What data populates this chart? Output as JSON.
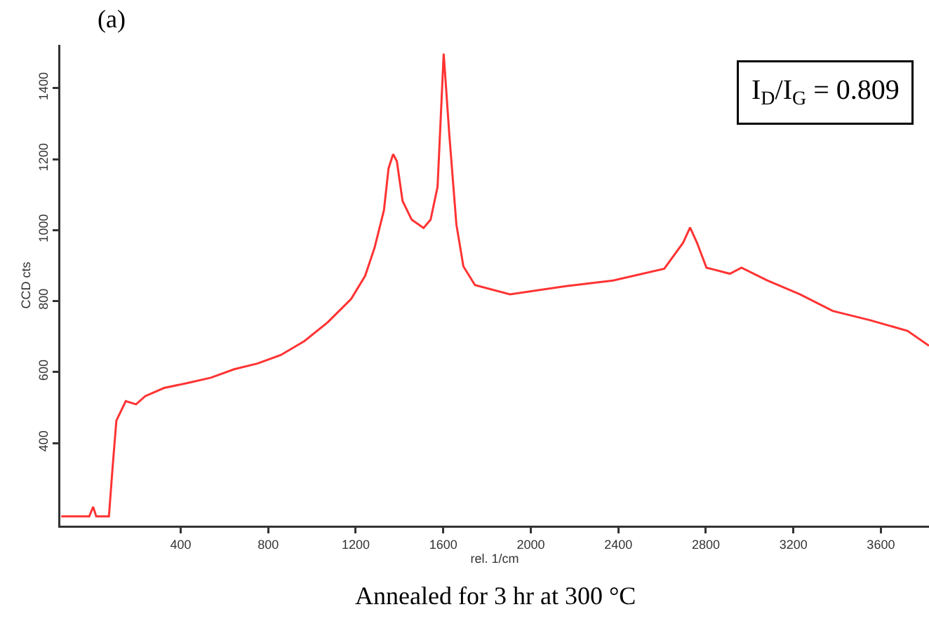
{
  "chart_data": {
    "type": "line",
    "title": "(a)",
    "xlabel": "rel. 1/cm",
    "ylabel": "CCD cts",
    "x": [
      -146,
      -18,
      0,
      14,
      72,
      89,
      106,
      149,
      196,
      238,
      324,
      431,
      538,
      645,
      751,
      858,
      965,
      1072,
      1179,
      1243,
      1286,
      1329,
      1350,
      1371,
      1388,
      1414,
      1456,
      1510,
      1542,
      1574,
      1602,
      1628,
      1660,
      1692,
      1745,
      1905,
      2161,
      2376,
      2610,
      2696,
      2728,
      2760,
      2803,
      2910,
      2963,
      3081,
      3230,
      3380,
      3551,
      3722,
      3820
    ],
    "series": [
      {
        "color": "#ff3333",
        "values": [
          193,
          193,
          220,
          193,
          193,
          332,
          463,
          518,
          509,
          532,
          555,
          569,
          584,
          608,
          624,
          648,
          687,
          740,
          806,
          871,
          950,
          1056,
          1174,
          1214,
          1194,
          1082,
          1029,
          1006,
          1029,
          1122,
          1497,
          1267,
          1016,
          898,
          845,
          819,
          842,
          858,
          891,
          964,
          1007,
          964,
          894,
          877,
          894,
          858,
          819,
          772,
          746,
          716,
          674
        ]
      }
    ],
    "xlim": [
      -150,
      3820
    ],
    "ylim": [
      167,
      1522
    ],
    "xticks": [
      400,
      800,
      1200,
      1600,
      2000,
      2400,
      2800,
      3200,
      3600
    ],
    "yticks": [
      400,
      600,
      800,
      1000,
      1200,
      1400
    ],
    "grid": false,
    "marker": "none",
    "line_style": "solid",
    "annotations": [
      "I$_{D}$/I$_{G}$ = 0.809",
      "Annealed for 3 hr at 300 °C"
    ]
  }
}
